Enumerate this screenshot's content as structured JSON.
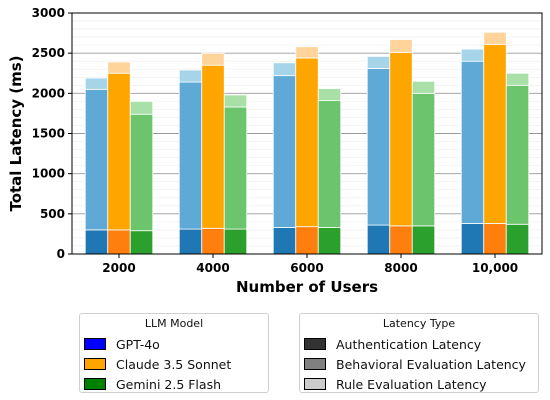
{
  "chart_data": {
    "type": "bar",
    "stacked": true,
    "xlabel": "Number of Users",
    "ylabel": "Total Latency (ms)",
    "ylim": [
      0,
      3000
    ],
    "yticks": [
      0,
      500,
      1000,
      1500,
      2000,
      2500,
      3000
    ],
    "grid": "y",
    "categories": [
      "2000",
      "4000",
      "6000",
      "8000",
      "10,000"
    ],
    "stack_layers": [
      "Authentication Latency",
      "Behavioral Evaluation Latency",
      "Rule Evaluation Latency"
    ],
    "series": [
      {
        "name": "GPT-4o",
        "authentication": [
          300,
          310,
          330,
          360,
          380
        ],
        "behavioral": [
          1750,
          1830,
          1890,
          1950,
          2020
        ],
        "rule": [
          140,
          150,
          160,
          150,
          150
        ]
      },
      {
        "name": "Claude 3.5 Sonnet",
        "authentication": [
          300,
          320,
          340,
          350,
          380
        ],
        "behavioral": [
          1950,
          2030,
          2100,
          2160,
          2230
        ],
        "rule": [
          140,
          150,
          140,
          160,
          150
        ]
      },
      {
        "name": "Gemini 2.5 Flash",
        "authentication": [
          290,
          310,
          330,
          350,
          370
        ],
        "behavioral": [
          1450,
          1520,
          1580,
          1650,
          1730
        ],
        "rule": [
          160,
          150,
          150,
          150,
          150
        ]
      }
    ],
    "colors": {
      "GPT-4o": [
        "#1f77b4",
        "#5ea9d6",
        "#a6d4e8"
      ],
      "Claude 3.5 Sonnet": [
        "#ff7f0e",
        "#ffa500",
        "#ffd49a"
      ],
      "Gemini 2.5 Flash": [
        "#2ca02c",
        "#6cc46c",
        "#a8e0a8"
      ]
    },
    "legends": [
      {
        "title": "LLM Model",
        "placement": "bottom-left",
        "entries": [
          {
            "label": "GPT-4o",
            "color": "#0000ff"
          },
          {
            "label": "Claude 3.5 Sonnet",
            "color": "#ffa500"
          },
          {
            "label": "Gemini 2.5 Flash",
            "color": "#008000"
          }
        ]
      },
      {
        "title": "Latency Type",
        "placement": "bottom-right",
        "entries": [
          {
            "label": "Authentication Latency",
            "color": "#333333"
          },
          {
            "label": "Behavioral Evaluation Latency",
            "color": "#808080"
          },
          {
            "label": "Rule Evaluation Latency",
            "color": "#cccccc"
          }
        ]
      }
    ]
  }
}
